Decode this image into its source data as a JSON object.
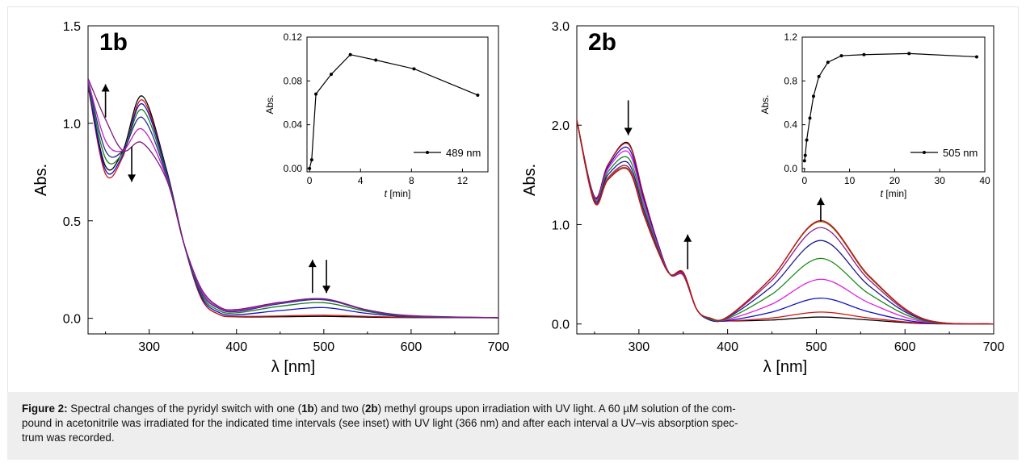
{
  "chart_data": [
    {
      "type": "line",
      "panel_label": "1b",
      "xlabel": "λ [nm]",
      "ylabel": "Abs.",
      "xlim": [
        230,
        700
      ],
      "ylim": [
        -0.08,
        1.5
      ],
      "xticks": [
        300,
        400,
        500,
        600,
        700
      ],
      "yticks": [
        "0.0",
        "0.5",
        "1.0",
        "1.5"
      ],
      "ytick_values": [
        0,
        0.5,
        1.0,
        1.5
      ],
      "grid": false,
      "legend": "none",
      "annotations": [
        {
          "text": "arrow up",
          "x": 250,
          "y_from": 1.03,
          "y_to": 1.2
        },
        {
          "text": "arrow down",
          "x": 280,
          "y_from": 0.88,
          "y_to": 0.7
        },
        {
          "text": "arrow up",
          "x": 487,
          "y_from": 0.13,
          "y_to": 0.3
        },
        {
          "text": "arrow down",
          "x": 503,
          "y_from": 0.3,
          "y_to": 0.13
        }
      ],
      "series": [
        {
          "color": "#000000",
          "x": [
            230,
            250,
            270,
            292,
            320,
            340,
            360,
            380,
            400,
            450,
            500,
            550,
            600,
            700
          ],
          "values": [
            1.2,
            0.78,
            0.86,
            1.14,
            0.76,
            0.38,
            0.1,
            0.02,
            0.008,
            0.008,
            0.01,
            0.006,
            0.004,
            0.003
          ]
        },
        {
          "color": "#d01010",
          "x": [
            230,
            250,
            270,
            292,
            320,
            340,
            360,
            380,
            400,
            450,
            500,
            550,
            600,
            700
          ],
          "values": [
            1.19,
            0.74,
            0.83,
            1.12,
            0.75,
            0.38,
            0.1,
            0.02,
            0.01,
            0.012,
            0.016,
            0.01,
            0.005,
            0.003
          ]
        },
        {
          "color": "#1010c8",
          "x": [
            230,
            250,
            270,
            292,
            320,
            340,
            360,
            380,
            400,
            450,
            500,
            550,
            600,
            700
          ],
          "values": [
            1.2,
            0.76,
            0.84,
            1.1,
            0.75,
            0.38,
            0.11,
            0.03,
            0.018,
            0.04,
            0.055,
            0.025,
            0.008,
            0.003
          ]
        },
        {
          "color": "#1a7a1a",
          "x": [
            230,
            250,
            270,
            292,
            320,
            340,
            360,
            380,
            400,
            450,
            500,
            550,
            600,
            700
          ],
          "values": [
            1.21,
            0.82,
            0.85,
            1.07,
            0.74,
            0.38,
            0.12,
            0.04,
            0.028,
            0.062,
            0.08,
            0.035,
            0.01,
            0.003
          ]
        },
        {
          "color": "#2b2b8c",
          "x": [
            230,
            250,
            270,
            292,
            320,
            340,
            360,
            380,
            400,
            450,
            500,
            550,
            600,
            700
          ],
          "values": [
            1.22,
            0.86,
            0.86,
            1.03,
            0.73,
            0.38,
            0.13,
            0.05,
            0.035,
            0.075,
            0.095,
            0.04,
            0.012,
            0.003
          ]
        },
        {
          "color": "#c020c0",
          "x": [
            230,
            250,
            270,
            292,
            320,
            340,
            360,
            380,
            400,
            450,
            500,
            550,
            600,
            700
          ],
          "values": [
            1.22,
            0.91,
            0.86,
            0.97,
            0.72,
            0.38,
            0.14,
            0.055,
            0.04,
            0.08,
            0.1,
            0.042,
            0.013,
            0.003
          ]
        },
        {
          "color": "#7a1a7a",
          "x": [
            230,
            250,
            270,
            292,
            320,
            340,
            360,
            380,
            400,
            450,
            500,
            550,
            600,
            700
          ],
          "values": [
            1.23,
            1.02,
            0.86,
            0.9,
            0.71,
            0.38,
            0.15,
            0.06,
            0.045,
            0.082,
            0.1,
            0.043,
            0.014,
            0.003
          ]
        }
      ]
    },
    {
      "type": "line",
      "panel_label": "inset-1b",
      "xlabel": "t [min]",
      "ylabel": "Abs.",
      "xlim": [
        -0.2,
        14
      ],
      "ylim": [
        -0.003,
        0.12
      ],
      "xticks": [
        0,
        4,
        8,
        12
      ],
      "yticks": [
        "0.00",
        "0.04",
        "0.08",
        "0.12"
      ],
      "ytick_values": [
        0,
        0.04,
        0.08,
        0.12
      ],
      "legend_entry": "489 nm",
      "series": [
        {
          "name": "489 nm",
          "color": "#000000",
          "x": [
            0,
            0.17,
            0.5,
            1.7,
            3.2,
            5.2,
            8.2,
            13.2
          ],
          "values": [
            0.0,
            0.008,
            0.068,
            0.086,
            0.104,
            0.099,
            0.091,
            0.067
          ]
        }
      ]
    },
    {
      "type": "line",
      "panel_label": "2b",
      "xlabel": "λ [nm]",
      "ylabel": "Abs.",
      "xlim": [
        230,
        700
      ],
      "ylim": [
        -0.1,
        3.0
      ],
      "xticks": [
        300,
        400,
        500,
        600,
        700
      ],
      "yticks": [
        "0.0",
        "1.0",
        "2.0",
        "3.0"
      ],
      "ytick_values": [
        0,
        1.0,
        2.0,
        3.0
      ],
      "grid": false,
      "legend": "none",
      "annotations": [
        {
          "text": "arrow down",
          "x": 288,
          "y_from": 2.25,
          "y_to": 1.9
        },
        {
          "text": "arrow up",
          "x": 355,
          "y_from": 0.55,
          "y_to": 0.9
        },
        {
          "text": "arrow up",
          "x": 505,
          "y_from": 1.03,
          "y_to": 1.27
        }
      ],
      "series": [
        {
          "color": "#000000",
          "x": [
            230,
            250,
            265,
            288,
            305,
            320,
            335,
            350,
            365,
            380,
            400,
            450,
            505,
            560,
            620,
            700
          ],
          "values": [
            2.05,
            1.28,
            1.6,
            1.82,
            1.3,
            0.85,
            0.5,
            0.49,
            0.15,
            0.04,
            0.03,
            0.04,
            0.07,
            0.04,
            0.005,
            0
          ]
        },
        {
          "color": "#d01010",
          "x": [
            230,
            250,
            265,
            288,
            305,
            320,
            335,
            350,
            365,
            380,
            400,
            450,
            505,
            560,
            620,
            700
          ],
          "values": [
            2.05,
            1.28,
            1.6,
            1.81,
            1.3,
            0.85,
            0.5,
            0.49,
            0.15,
            0.04,
            0.03,
            0.06,
            0.12,
            0.06,
            0.008,
            0
          ]
        },
        {
          "color": "#1010c8",
          "x": [
            230,
            250,
            265,
            288,
            305,
            320,
            335,
            350,
            365,
            380,
            400,
            450,
            505,
            560,
            620,
            700
          ],
          "values": [
            2.05,
            1.27,
            1.58,
            1.77,
            1.27,
            0.84,
            0.5,
            0.5,
            0.15,
            0.04,
            0.035,
            0.12,
            0.26,
            0.12,
            0.015,
            0
          ]
        },
        {
          "color": "#e020e0",
          "x": [
            230,
            250,
            265,
            288,
            305,
            320,
            335,
            350,
            365,
            380,
            400,
            450,
            505,
            560,
            620,
            700
          ],
          "values": [
            2.05,
            1.26,
            1.56,
            1.73,
            1.24,
            0.82,
            0.5,
            0.5,
            0.15,
            0.05,
            0.045,
            0.2,
            0.45,
            0.21,
            0.025,
            0
          ]
        },
        {
          "color": "#1a8a1a",
          "x": [
            230,
            250,
            265,
            288,
            305,
            320,
            335,
            350,
            365,
            380,
            400,
            450,
            505,
            560,
            620,
            700
          ],
          "values": [
            2.05,
            1.25,
            1.53,
            1.67,
            1.2,
            0.8,
            0.5,
            0.51,
            0.15,
            0.05,
            0.055,
            0.3,
            0.66,
            0.3,
            0.035,
            0
          ]
        },
        {
          "color": "#1a1a8a",
          "x": [
            230,
            250,
            265,
            288,
            305,
            320,
            335,
            350,
            365,
            380,
            400,
            450,
            505,
            560,
            620,
            700
          ],
          "values": [
            2.05,
            1.24,
            1.5,
            1.62,
            1.16,
            0.78,
            0.5,
            0.51,
            0.15,
            0.06,
            0.065,
            0.38,
            0.84,
            0.38,
            0.045,
            0
          ]
        },
        {
          "color": "#8a1a8a",
          "x": [
            230,
            250,
            265,
            288,
            305,
            320,
            335,
            350,
            365,
            380,
            400,
            450,
            505,
            560,
            620,
            700
          ],
          "values": [
            2.05,
            1.23,
            1.47,
            1.58,
            1.13,
            0.77,
            0.5,
            0.52,
            0.15,
            0.06,
            0.07,
            0.44,
            0.97,
            0.44,
            0.05,
            0
          ]
        },
        {
          "color": "#8a6a1a",
          "x": [
            230,
            250,
            265,
            288,
            305,
            320,
            335,
            350,
            365,
            380,
            400,
            450,
            505,
            560,
            620,
            700
          ],
          "values": [
            2.05,
            1.22,
            1.46,
            1.56,
            1.12,
            0.76,
            0.5,
            0.52,
            0.15,
            0.06,
            0.072,
            0.47,
            1.03,
            0.47,
            0.055,
            0
          ]
        },
        {
          "color": "#c01010",
          "x": [
            230,
            250,
            265,
            288,
            305,
            320,
            335,
            350,
            365,
            380,
            400,
            450,
            505,
            560,
            620,
            700
          ],
          "values": [
            2.05,
            1.22,
            1.45,
            1.55,
            1.11,
            0.76,
            0.5,
            0.52,
            0.15,
            0.06,
            0.073,
            0.47,
            1.04,
            0.48,
            0.055,
            0
          ]
        }
      ]
    },
    {
      "type": "line",
      "panel_label": "inset-2b",
      "xlabel": "t [min]",
      "ylabel": "Abs.",
      "xlim": [
        -0.5,
        40
      ],
      "ylim": [
        -0.03,
        1.2
      ],
      "xticks": [
        0,
        10,
        20,
        30,
        40
      ],
      "yticks": [
        "0.0",
        "0.4",
        "0.8",
        "1.2"
      ],
      "ytick_values": [
        0,
        0.4,
        0.8,
        1.2
      ],
      "legend_entry": "505 nm",
      "series": [
        {
          "name": "505 nm",
          "color": "#000000",
          "x": [
            0,
            0.17,
            0.5,
            1.2,
            2.0,
            3.2,
            5.2,
            8.2,
            13.2,
            23.2,
            38.2
          ],
          "values": [
            0.07,
            0.12,
            0.26,
            0.46,
            0.66,
            0.84,
            0.97,
            1.03,
            1.04,
            1.05,
            1.02
          ]
        }
      ]
    }
  ],
  "panels": {
    "p1_label": "1b",
    "p2_label": "2b",
    "xlabel": "λ [nm]",
    "ylabel": "Abs.",
    "inset_xlabel_var": "t",
    "inset_xlabel_unit": " [min]",
    "inset1_legend": "489 nm",
    "inset2_legend": "505 nm"
  },
  "caption": {
    "prefix": "Figure 2:",
    "part1": " Spectral changes of the pyridyl switch with one (",
    "bold1": "1b",
    "part2": ") and two (",
    "bold2": "2b",
    "part3": ") methyl groups upon irradiation with UV light. A 60 µM solution of the com-",
    "line2": "pound in acetonitrile was irradiated for the indicated time intervals (see inset) with UV light (366 nm) and after each interval a UV–vis absorption spec-",
    "line3": "trum was recorded."
  },
  "colors": {
    "frame": "#e6e6e6",
    "caption_bg": "#eeeeee",
    "axis": "#000000"
  }
}
